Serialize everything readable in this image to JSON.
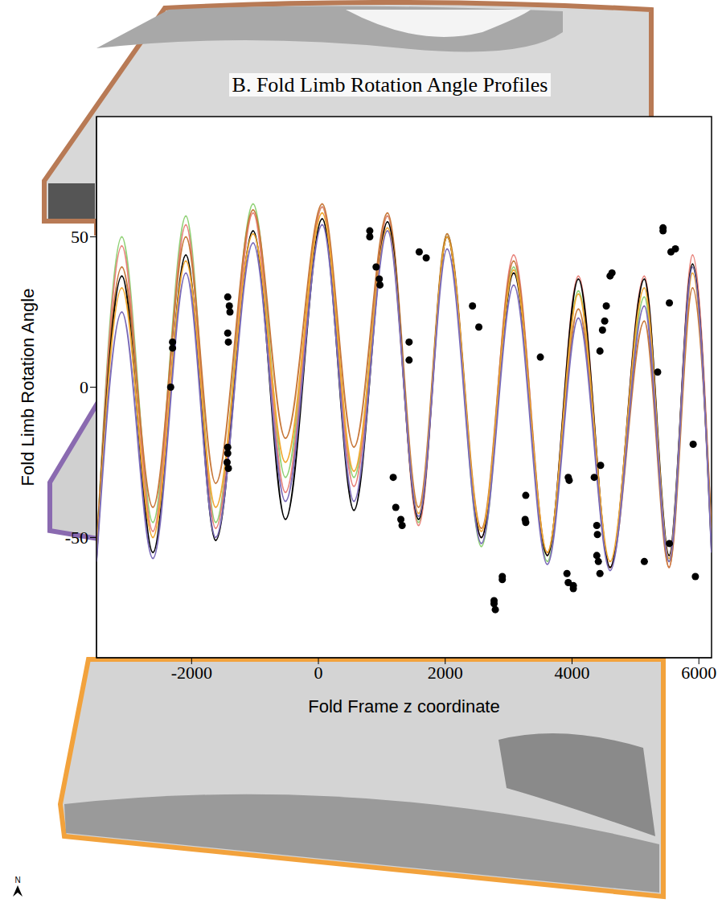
{
  "chart_data": {
    "type": "line",
    "title": "B. Fold Limb Rotation Angle Profiles",
    "x_label": "Fold Frame z coordinate",
    "y_label": "Fold Limb Rotation Angle",
    "xlim": [
      -3500,
      6200
    ],
    "xticks": [
      -2000,
      0,
      2000,
      4000,
      6000
    ],
    "ylim": [
      -90,
      90
    ],
    "yticks": [
      -50,
      0,
      50
    ],
    "annotations": [
      "N"
    ],
    "x": [
      -3500,
      -3100,
      -2610,
      -2090,
      -1620,
      -1030,
      -520,
      60,
      560,
      1090,
      1580,
      2030,
      2570,
      3080,
      3610,
      4100,
      4600,
      5140,
      5530,
      5900,
      6200
    ],
    "series": [
      {
        "color": "#8fd175",
        "values": [
          -55,
          50,
          -45,
          57,
          -45,
          61,
          -30,
          60,
          -30,
          57,
          -45,
          51,
          -53,
          40,
          -58,
          32,
          -60,
          30,
          -58,
          40,
          -52
        ]
      },
      {
        "color": "#e8827a",
        "values": [
          -56,
          47,
          -48,
          54,
          -47,
          58,
          -35,
          60,
          -33,
          57,
          -46,
          50,
          -50,
          44,
          -56,
          37,
          -60,
          37,
          -60,
          44,
          -50
        ]
      },
      {
        "color": "#c8783a",
        "values": [
          -54,
          40,
          -40,
          50,
          -32,
          59,
          -17,
          61,
          -20,
          58,
          -40,
          51,
          -47,
          42,
          -55,
          26,
          -60,
          22,
          -60,
          33,
          -48
        ]
      },
      {
        "color": "#000000",
        "values": [
          -57,
          37,
          -55,
          44,
          -51,
          52,
          -44,
          56,
          -41,
          55,
          -44,
          50,
          -50,
          38,
          -56,
          36,
          -60,
          36,
          -56,
          41,
          -54
        ]
      },
      {
        "color": "#f0a832",
        "values": [
          -56,
          33,
          -50,
          42,
          -40,
          51,
          -25,
          58,
          -28,
          53,
          -42,
          50,
          -48,
          39,
          -55,
          31,
          -58,
          33,
          -57,
          38,
          -52
        ]
      },
      {
        "color": "#7b6bb8",
        "values": [
          -58,
          25,
          -57,
          38,
          -50,
          48,
          -38,
          54,
          -38,
          52,
          -43,
          46,
          -52,
          34,
          -59,
          23,
          -61,
          27,
          -58,
          40,
          -55
        ]
      },
      {
        "type": "scatter",
        "color": "#000000",
        "marker": "circle",
        "x": [
          -2330,
          -2300,
          -2300,
          -1430,
          -1405,
          -1395,
          -1430,
          -1420,
          -1430,
          -1430,
          -1440,
          -1420,
          810,
          810,
          910,
          960,
          970,
          1430,
          1430,
          1180,
          1220,
          1300,
          1320,
          1590,
          1700,
          2430,
          2530,
          3500,
          3270,
          3260,
          3270,
          2900,
          2900,
          2770,
          2770,
          2790,
          3940,
          3955,
          3920,
          3940,
          4020,
          4020,
          4440,
          4480,
          4515,
          4540,
          4600,
          4630,
          4350,
          4450,
          4390,
          4400,
          4390,
          4415,
          4440,
          5140,
          5350,
          5435,
          5435,
          5560,
          5630,
          5535,
          5535,
          5910,
          5945
        ],
        "values": [
          0,
          15,
          13,
          30,
          27,
          25,
          18,
          15,
          -20,
          -22,
          -25,
          -27,
          52,
          50,
          40,
          36,
          34,
          15,
          9,
          -30,
          -40,
          -44,
          -46,
          45,
          43,
          27,
          20,
          10,
          -36,
          -44,
          -45,
          -63,
          -64,
          -71,
          -72,
          -74,
          -30,
          -31,
          -62,
          -65,
          -66,
          -67,
          12,
          19,
          22,
          27,
          37,
          38,
          -30,
          -26,
          -46,
          -49,
          -56,
          -58,
          -62,
          -58,
          5,
          53,
          52,
          45,
          46,
          28,
          -52,
          -19,
          -63
        ]
      }
    ]
  }
}
